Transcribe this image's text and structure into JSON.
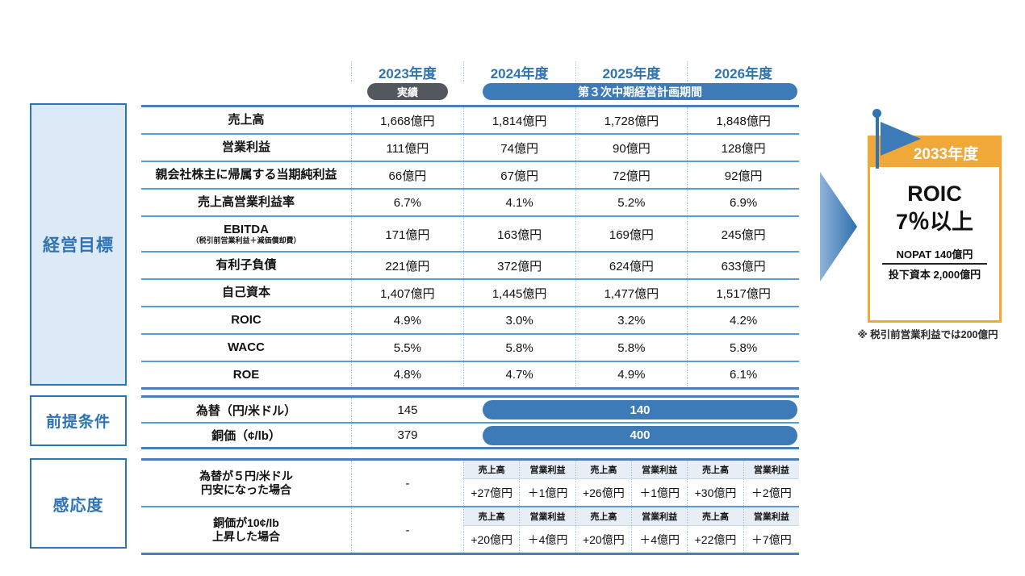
{
  "header": {
    "years": [
      "2023年度",
      "2024年度",
      "2025年度",
      "2026年度"
    ],
    "actual_badge": "実績",
    "plan_badge": "第３次中期経営計画期間"
  },
  "sections": {
    "targets": "経営目標",
    "assumptions": "前提条件",
    "sensitivity": "感応度"
  },
  "targets": {
    "rows": [
      {
        "label": "売上高",
        "values": [
          "1,668億円",
          "1,814億円",
          "1,728億円",
          "1,848億円"
        ]
      },
      {
        "label": "営業利益",
        "values": [
          "111億円",
          "74億円",
          "90億円",
          "128億円"
        ]
      },
      {
        "label": "親会社株主に帰属する当期純利益",
        "values": [
          "66億円",
          "67億円",
          "72億円",
          "92億円"
        ]
      },
      {
        "label": "売上高営業利益率",
        "values": [
          "6.7%",
          "4.1%",
          "5.2%",
          "6.9%"
        ]
      },
      {
        "label": "EBITDA",
        "sublabel": "（税引前営業利益＋減価償却費）",
        "values": [
          "171億円",
          "163億円",
          "169億円",
          "245億円"
        ]
      },
      {
        "label": "有利子負債",
        "values": [
          "221億円",
          "372億円",
          "624億円",
          "633億円"
        ]
      },
      {
        "label": "自己資本",
        "values": [
          "1,407億円",
          "1,445億円",
          "1,477億円",
          "1,517億円"
        ]
      },
      {
        "label": "ROIC",
        "values": [
          "4.9%",
          "3.0%",
          "3.2%",
          "4.2%"
        ]
      },
      {
        "label": "WACC",
        "values": [
          "5.5%",
          "5.8%",
          "5.8%",
          "5.8%"
        ]
      },
      {
        "label": "ROE",
        "values": [
          "4.8%",
          "4.7%",
          "4.9%",
          "6.1%"
        ]
      }
    ]
  },
  "assumptions": {
    "rows": [
      {
        "label": "為替（円/米ドル）",
        "actual": "145",
        "plan": "140"
      },
      {
        "label": "銅価（¢/lb）",
        "actual": "379",
        "plan": "400"
      }
    ]
  },
  "sensitivity": {
    "col_headers": [
      "売上高",
      "営業利益"
    ],
    "rows": [
      {
        "label1": "為替が５円/米ドル",
        "label2": "円安になった場合",
        "actual": "-",
        "values": [
          "+27億円",
          "＋1億円",
          "+26億円",
          "＋1億円",
          "+30億円",
          "＋2億円"
        ]
      },
      {
        "label1": "銅価が10¢/lb",
        "label2": "上昇した場合",
        "actual": "-",
        "values": [
          "+20億円",
          "＋4億円",
          "+20億円",
          "＋4億円",
          "+22億円",
          "＋7億円"
        ]
      }
    ]
  },
  "goal_panel": {
    "year_badge": "2033年度",
    "title_line1": "ROIC",
    "title_line2": "7％以上",
    "numerator": "NOPAT 140億円",
    "denominator": "投下資本 2,000億円",
    "footnote": "※ 税引前営業利益では200億円"
  },
  "colors": {
    "accent_blue": "#2e74b5",
    "pill_blue": "#3c7ab8",
    "pill_dark": "#53585f",
    "orange": "#f0a839",
    "row_line_blue": "#5b9bd5",
    "thick_line_blue": "#4a7ebc",
    "targets_box_fill": "#dce9f7"
  }
}
